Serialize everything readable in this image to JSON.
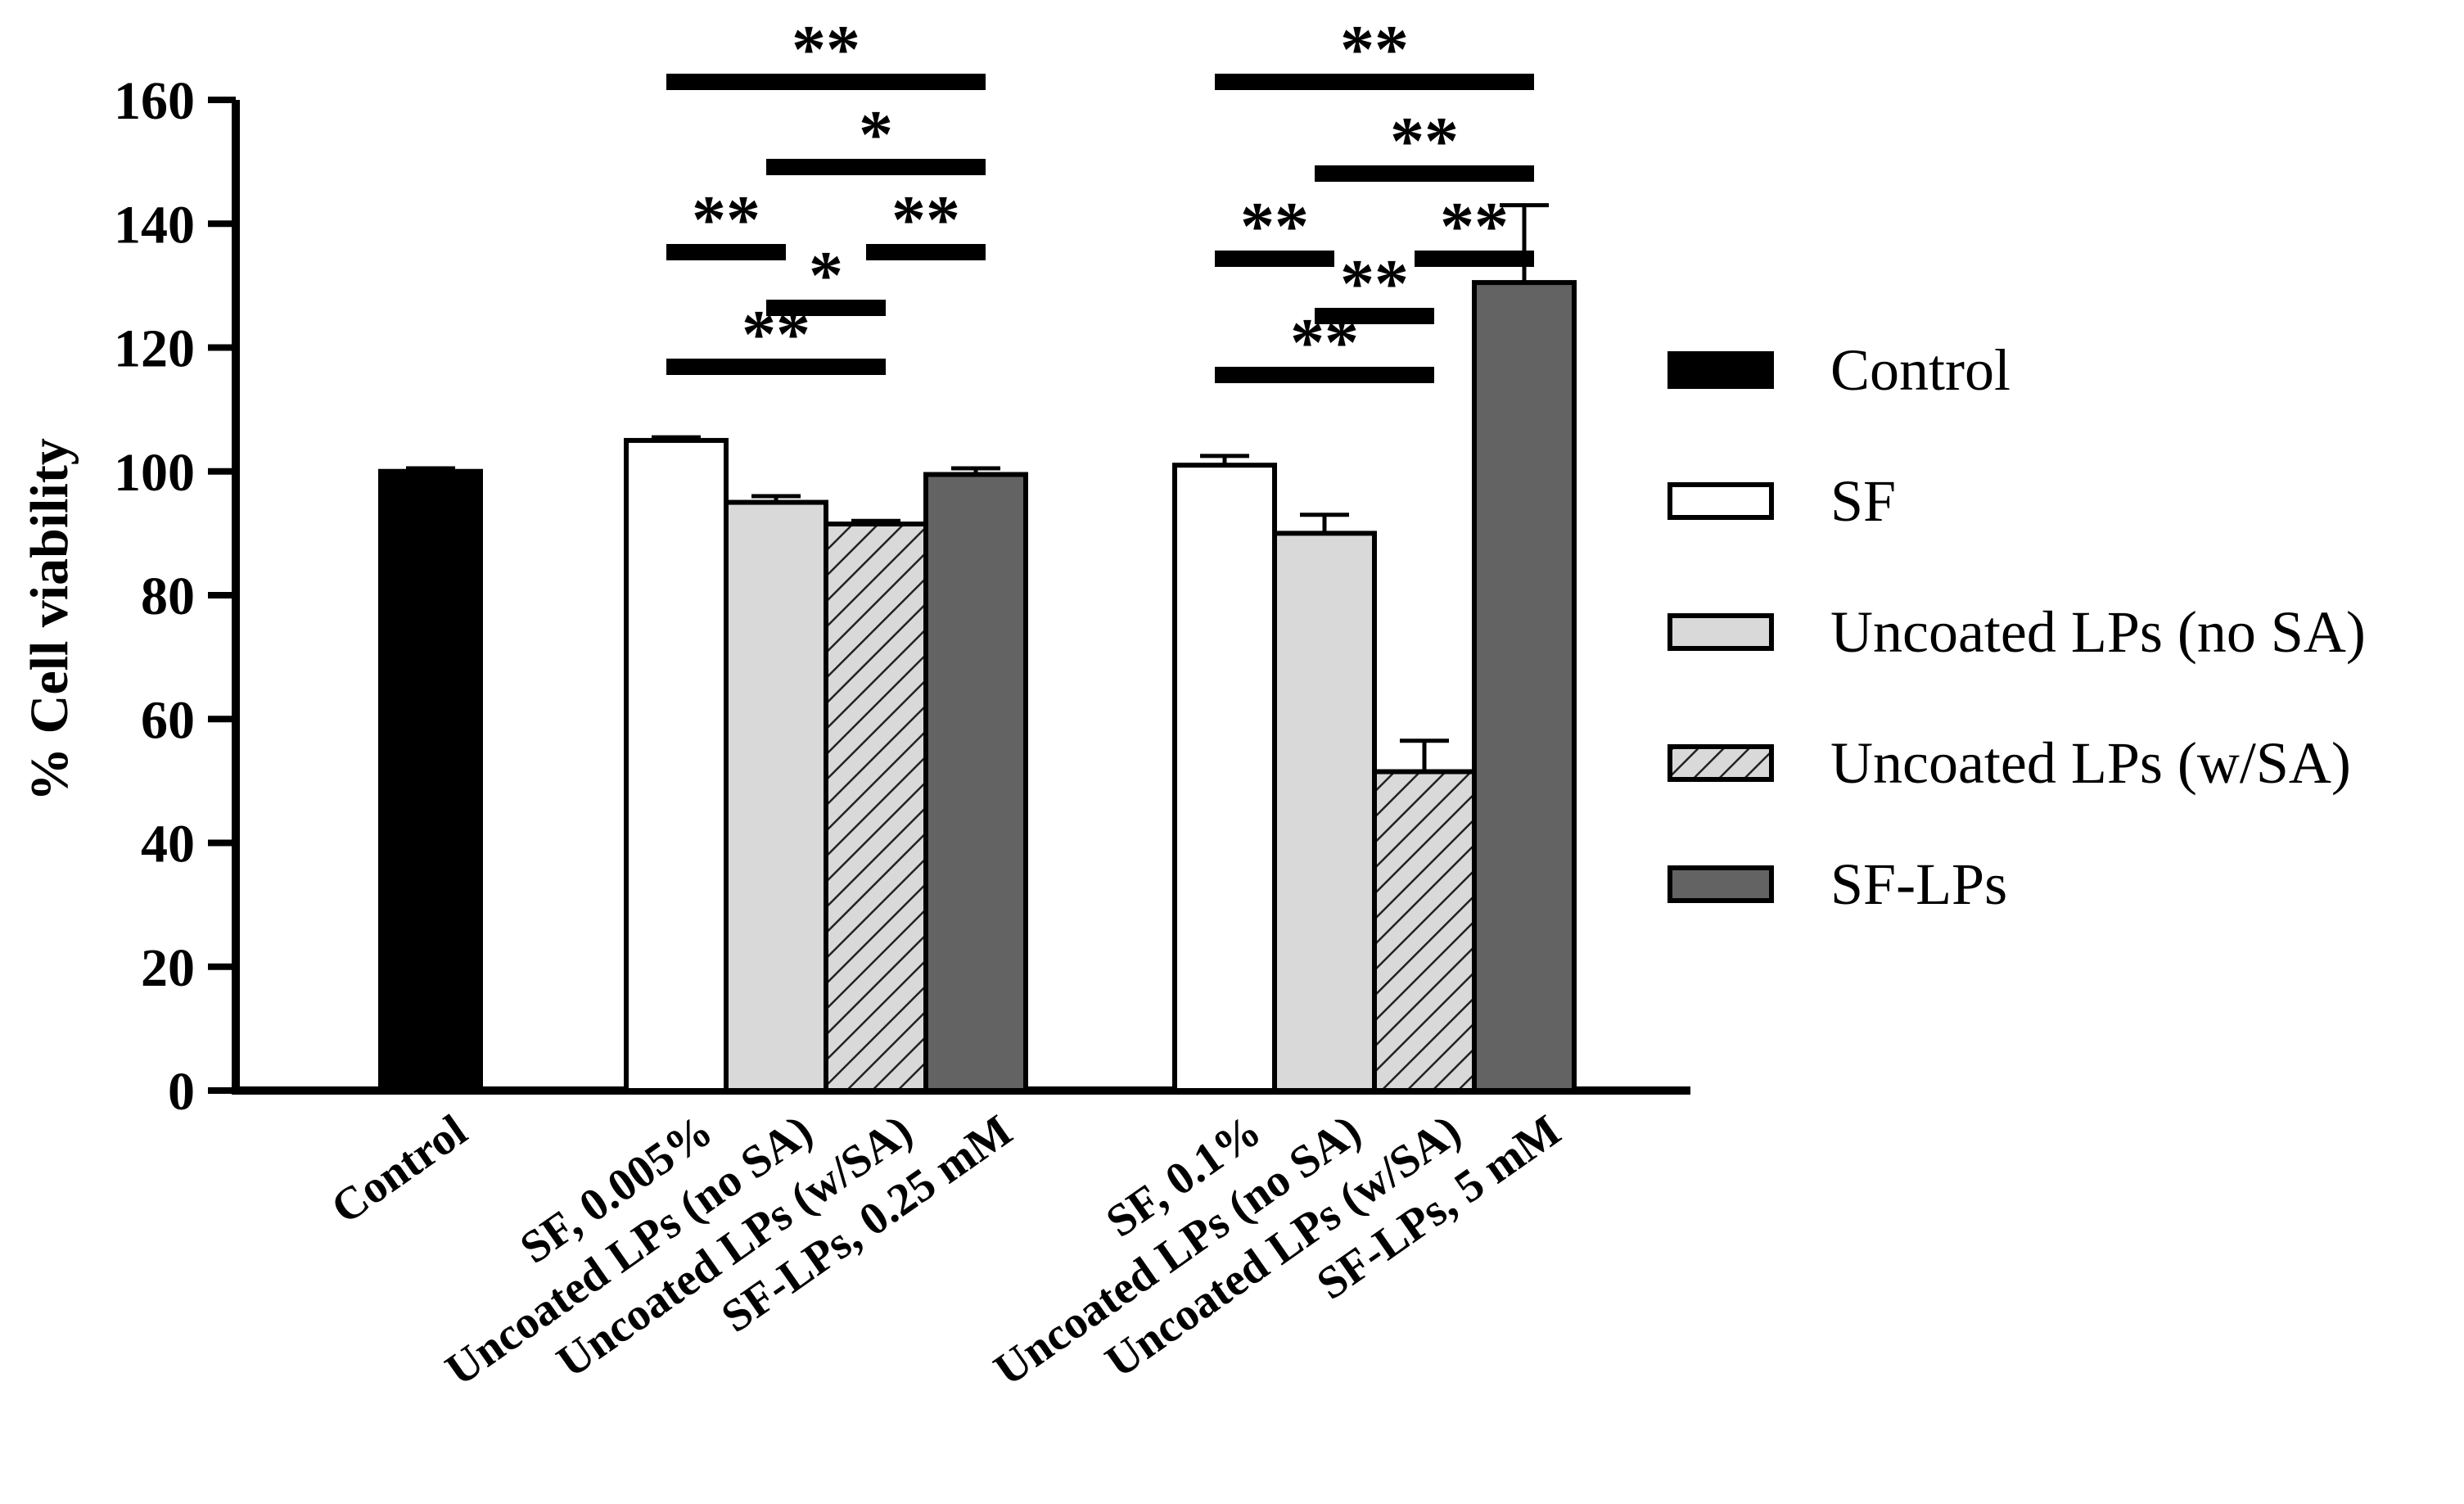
{
  "chart_data": {
    "type": "bar",
    "title": "",
    "xlabel": "",
    "ylabel": "% Cell viability",
    "ylim": [
      0,
      160
    ],
    "yticks": [
      0,
      20,
      40,
      60,
      80,
      100,
      120,
      140,
      160
    ],
    "legend_position": "right",
    "series_styles": [
      {
        "name": "Control",
        "fill": "#000000",
        "pattern": "solid"
      },
      {
        "name": "SF",
        "fill": "#ffffff",
        "pattern": "solid"
      },
      {
        "name": "Uncoated LPs (no SA)",
        "fill": "#d9d9d9",
        "pattern": "solid"
      },
      {
        "name": "Uncoated LPs (w/SA)",
        "fill": "#d9d9d9",
        "pattern": "hatch"
      },
      {
        "name": "SF-LPs",
        "fill": "#636363",
        "pattern": "solid"
      }
    ],
    "categories": [
      "Control",
      "SF, 0.005%",
      "Uncoated LPs (no SA)",
      "Uncoated LPs (w/SA)",
      "SF-LPs, 0.25 mM",
      "SF, 0.1%",
      "Uncoated LPs (no SA)",
      "Uncoated LPs (w/SA)",
      "SF-LPs, 5 mM"
    ],
    "bars": [
      {
        "category_index": 0,
        "series": 0,
        "value": 100,
        "error": 0.5
      },
      {
        "category_index": 1,
        "series": 1,
        "value": 105,
        "error": 0.5
      },
      {
        "category_index": 2,
        "series": 2,
        "value": 95,
        "error": 1
      },
      {
        "category_index": 3,
        "series": 3,
        "value": 91.5,
        "error": 0.5
      },
      {
        "category_index": 4,
        "series": 4,
        "value": 99.5,
        "error": 1
      },
      {
        "category_index": 5,
        "series": 1,
        "value": 101,
        "error": 1.5
      },
      {
        "category_index": 6,
        "series": 2,
        "value": 90,
        "error": 3
      },
      {
        "category_index": 7,
        "series": 3,
        "value": 51.5,
        "error": 5
      },
      {
        "category_index": 8,
        "series": 4,
        "value": 130.5,
        "error": 12.5
      }
    ],
    "significance": [
      {
        "from": 1,
        "to": 4,
        "label": "**"
      },
      {
        "from": 2,
        "to": 4,
        "label": "*"
      },
      {
        "from": 1,
        "to": 2,
        "label": "**"
      },
      {
        "from": 3,
        "to": 4,
        "label": "**"
      },
      {
        "from": 2,
        "to": 3,
        "label": "*"
      },
      {
        "from": 1,
        "to": 3,
        "label": "**"
      },
      {
        "from": 5,
        "to": 8,
        "label": "**"
      },
      {
        "from": 6,
        "to": 8,
        "label": "**"
      },
      {
        "from": 5,
        "to": 6,
        "label": "**"
      },
      {
        "from": 7,
        "to": 8,
        "label": "**"
      },
      {
        "from": 6,
        "to": 7,
        "label": "**"
      },
      {
        "from": 5,
        "to": 7,
        "label": "**"
      }
    ]
  }
}
